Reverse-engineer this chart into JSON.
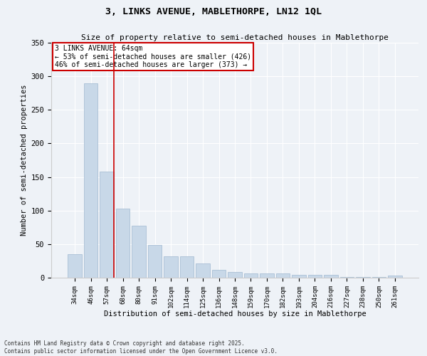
{
  "title1": "3, LINKS AVENUE, MABLETHORPE, LN12 1QL",
  "title2": "Size of property relative to semi-detached houses in Mablethorpe",
  "xlabel": "Distribution of semi-detached houses by size in Mablethorpe",
  "ylabel": "Number of semi-detached properties",
  "categories": [
    "34sqm",
    "46sqm",
    "57sqm",
    "68sqm",
    "80sqm",
    "91sqm",
    "102sqm",
    "114sqm",
    "125sqm",
    "136sqm",
    "148sqm",
    "159sqm",
    "170sqm",
    "182sqm",
    "193sqm",
    "204sqm",
    "216sqm",
    "227sqm",
    "238sqm",
    "250sqm",
    "261sqm"
  ],
  "values": [
    35,
    290,
    158,
    103,
    77,
    49,
    32,
    32,
    21,
    12,
    8,
    6,
    6,
    6,
    4,
    4,
    4,
    1,
    1,
    1,
    3
  ],
  "bar_color": "#c8d8e8",
  "bar_edge_color": "#a0b8d0",
  "vline_x_index": 2,
  "vline_color": "#cc0000",
  "annotation_text": "3 LINKS AVENUE: 64sqm\n← 53% of semi-detached houses are smaller (426)\n46% of semi-detached houses are larger (373) →",
  "annotation_box_color": "white",
  "annotation_border_color": "#cc0000",
  "footer_text": "Contains HM Land Registry data © Crown copyright and database right 2025.\nContains public sector information licensed under the Open Government Licence v3.0.",
  "bg_color": "#eef2f7",
  "ylim": [
    0,
    350
  ],
  "yticks": [
    0,
    50,
    100,
    150,
    200,
    250,
    300,
    350
  ]
}
